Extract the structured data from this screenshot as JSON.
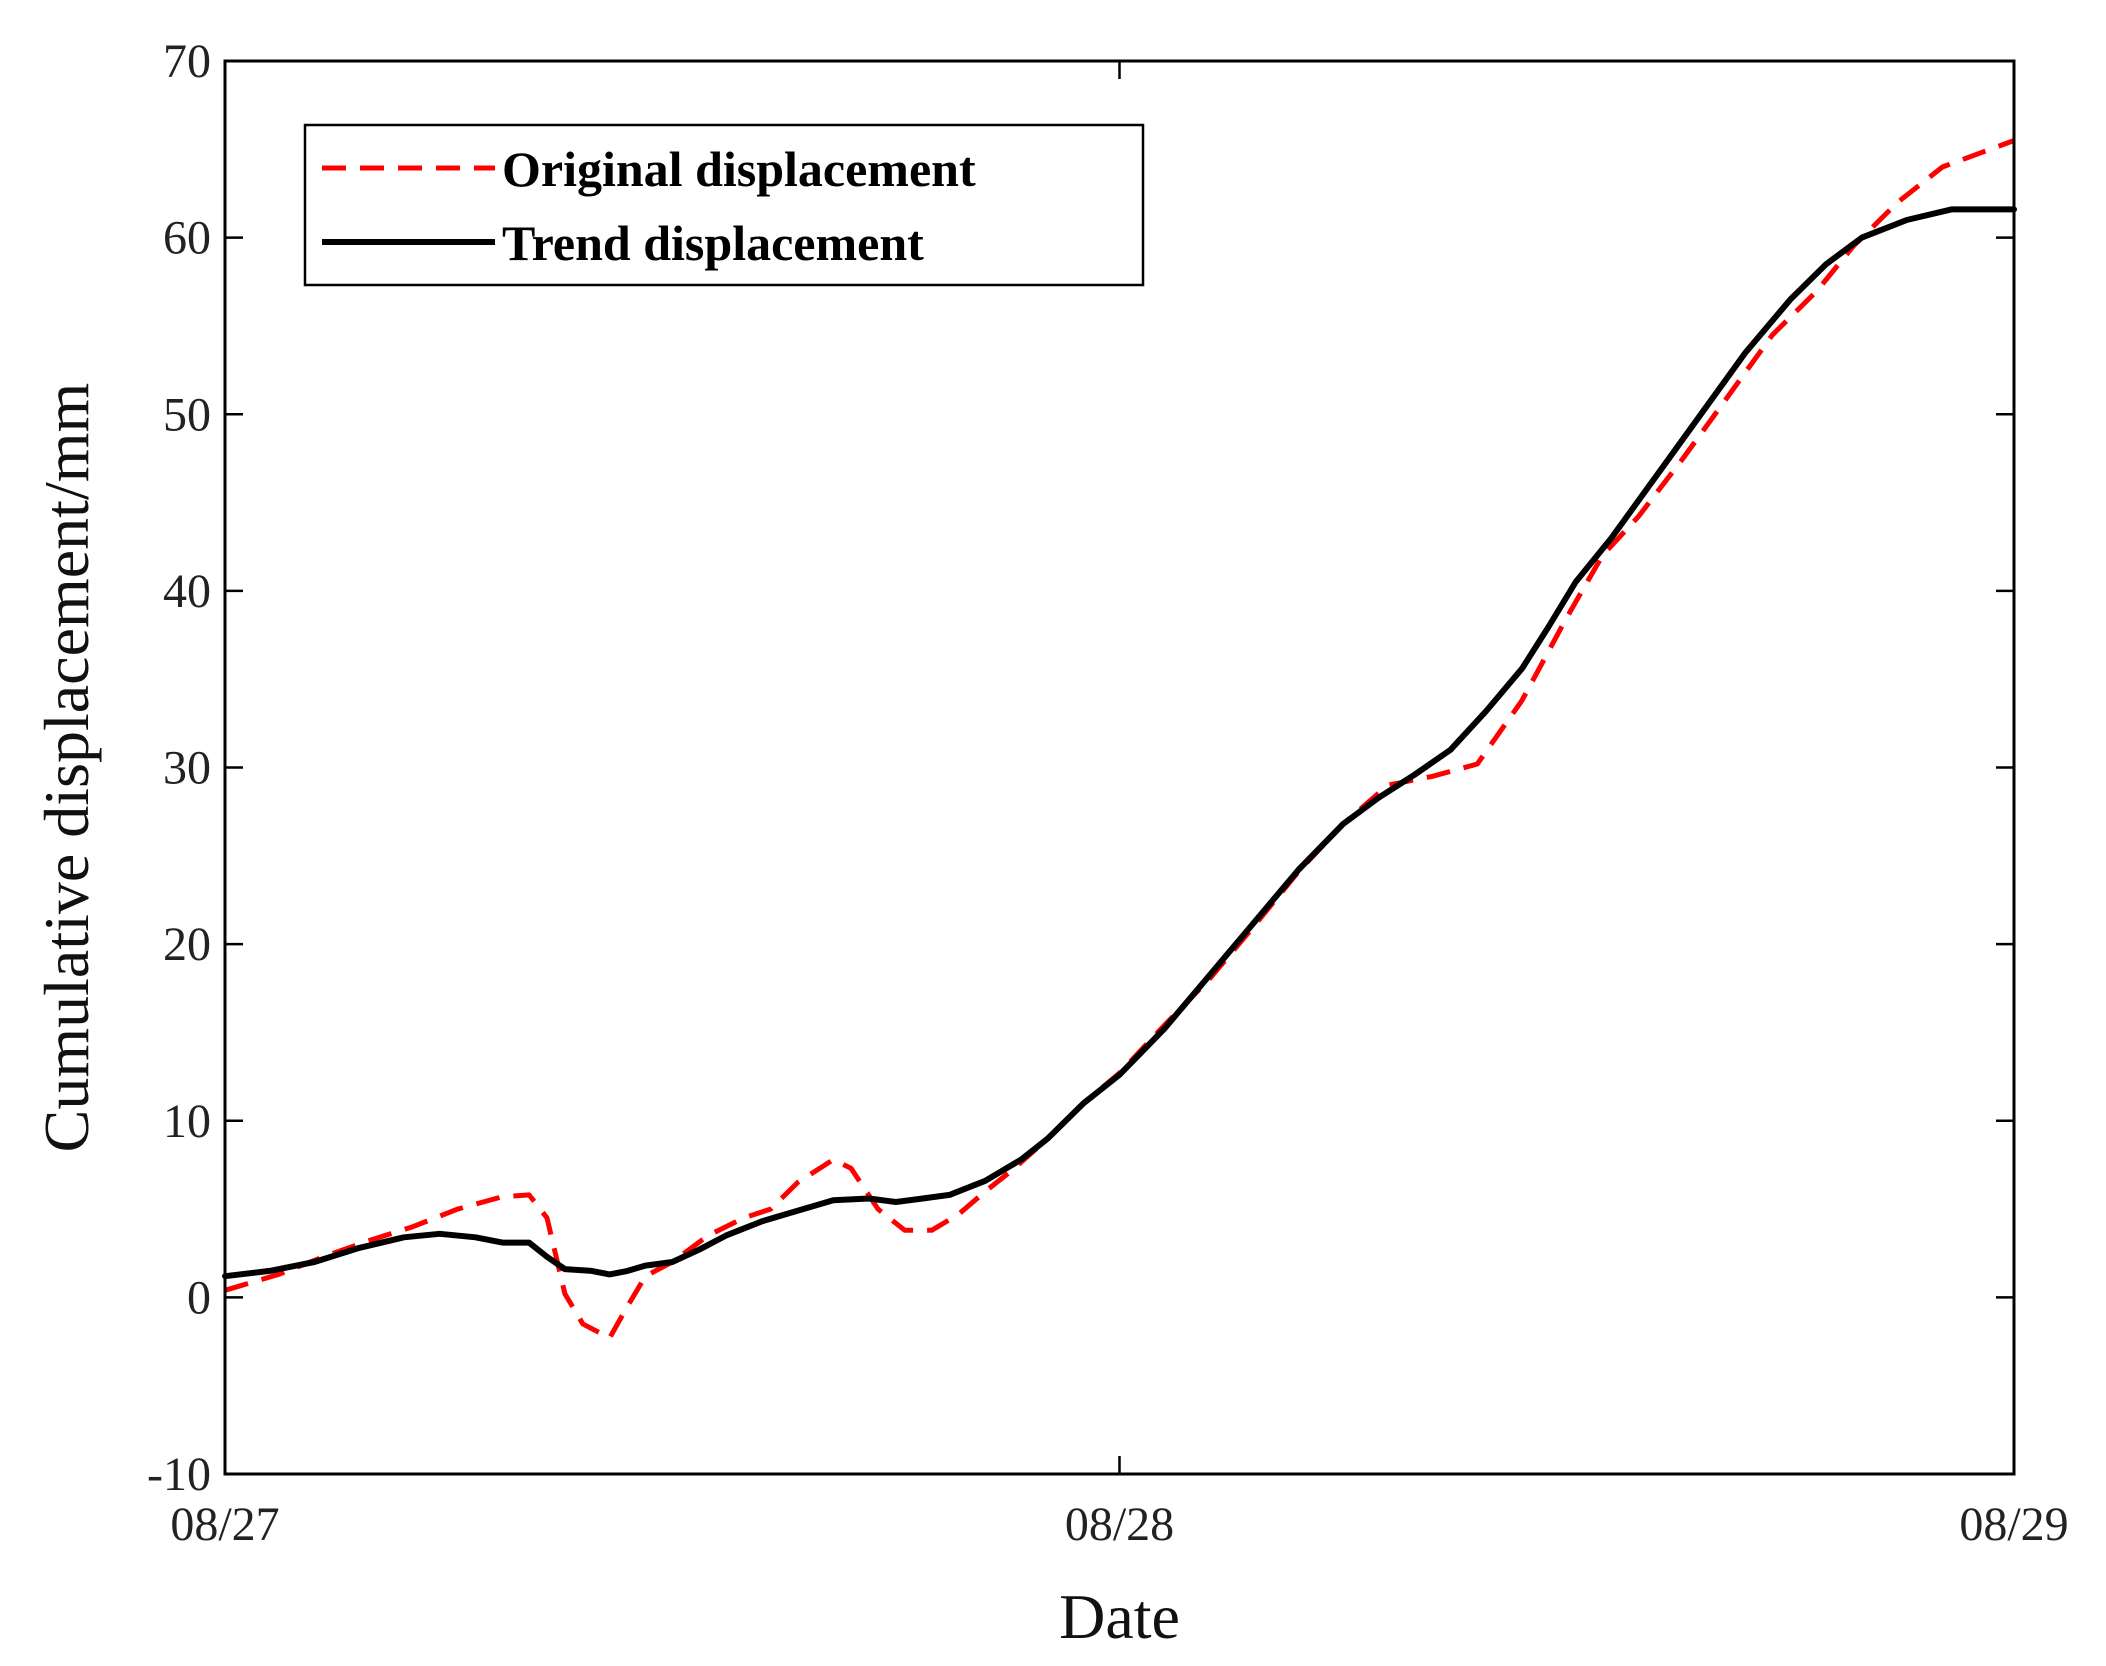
{
  "chart_data": {
    "type": "line",
    "xlabel": "Date",
    "ylabel": "Cumulative displacement/mm",
    "x_unit": "days",
    "xlim": [
      0,
      2
    ],
    "ylim": [
      -10,
      70
    ],
    "x_ticks": [
      {
        "value": 0,
        "label": "08/27"
      },
      {
        "value": 1,
        "label": "08/28"
      },
      {
        "value": 2,
        "label": "08/29"
      }
    ],
    "y_ticks": [
      {
        "value": -10,
        "label": "-10"
      },
      {
        "value": 0,
        "label": "0"
      },
      {
        "value": 10,
        "label": "10"
      },
      {
        "value": 20,
        "label": "20"
      },
      {
        "value": 30,
        "label": "30"
      },
      {
        "value": 40,
        "label": "40"
      },
      {
        "value": 50,
        "label": "50"
      },
      {
        "value": 60,
        "label": "60"
      },
      {
        "value": 70,
        "label": "70"
      }
    ],
    "grid": false,
    "legend_position": "top-left",
    "series": [
      {
        "name": "Original displacement",
        "style": "dashed",
        "color": "#ff0000",
        "points": [
          [
            0,
            0.4
          ],
          [
            0.06,
            1.3
          ],
          [
            0.11,
            2.3
          ],
          [
            0.16,
            3.2
          ],
          [
            0.21,
            4.0
          ],
          [
            0.26,
            5.0
          ],
          [
            0.31,
            5.7
          ],
          [
            0.34,
            5.8
          ],
          [
            0.36,
            4.5
          ],
          [
            0.38,
            0.2
          ],
          [
            0.4,
            -1.5
          ],
          [
            0.43,
            -2.3
          ],
          [
            0.45,
            -0.5
          ],
          [
            0.47,
            1.2
          ],
          [
            0.5,
            2.0
          ],
          [
            0.54,
            3.5
          ],
          [
            0.58,
            4.5
          ],
          [
            0.61,
            5.0
          ],
          [
            0.64,
            6.5
          ],
          [
            0.68,
            7.8
          ],
          [
            0.7,
            7.3
          ],
          [
            0.73,
            5.0
          ],
          [
            0.76,
            3.8
          ],
          [
            0.79,
            3.8
          ],
          [
            0.82,
            4.7
          ],
          [
            0.85,
            6.0
          ],
          [
            0.88,
            7.2
          ],
          [
            0.92,
            9.0
          ],
          [
            0.96,
            11.0
          ],
          [
            1.0,
            12.7
          ],
          [
            1.05,
            15.4
          ],
          [
            1.1,
            18.0
          ],
          [
            1.15,
            21.0
          ],
          [
            1.2,
            24.1
          ],
          [
            1.25,
            26.8
          ],
          [
            1.3,
            29.0
          ],
          [
            1.35,
            29.5
          ],
          [
            1.4,
            30.2
          ],
          [
            1.45,
            33.8
          ],
          [
            1.5,
            38.5
          ],
          [
            1.54,
            42.0
          ],
          [
            1.58,
            44.2
          ],
          [
            1.63,
            47.5
          ],
          [
            1.68,
            51.0
          ],
          [
            1.73,
            54.5
          ],
          [
            1.78,
            57.0
          ],
          [
            1.82,
            59.5
          ],
          [
            1.87,
            62.0
          ],
          [
            1.92,
            64.0
          ],
          [
            2.0,
            65.5
          ]
        ]
      },
      {
        "name": "Trend displacement",
        "style": "solid",
        "color": "#000000",
        "points": [
          [
            0,
            1.2
          ],
          [
            0.05,
            1.5
          ],
          [
            0.1,
            2.0
          ],
          [
            0.15,
            2.8
          ],
          [
            0.2,
            3.4
          ],
          [
            0.24,
            3.6
          ],
          [
            0.28,
            3.4
          ],
          [
            0.31,
            3.1
          ],
          [
            0.34,
            3.1
          ],
          [
            0.36,
            2.3
          ],
          [
            0.38,
            1.6
          ],
          [
            0.41,
            1.5
          ],
          [
            0.43,
            1.3
          ],
          [
            0.45,
            1.5
          ],
          [
            0.47,
            1.8
          ],
          [
            0.5,
            2.0
          ],
          [
            0.53,
            2.7
          ],
          [
            0.56,
            3.5
          ],
          [
            0.6,
            4.3
          ],
          [
            0.64,
            4.9
          ],
          [
            0.68,
            5.5
          ],
          [
            0.72,
            5.6
          ],
          [
            0.75,
            5.4
          ],
          [
            0.78,
            5.6
          ],
          [
            0.81,
            5.8
          ],
          [
            0.85,
            6.6
          ],
          [
            0.89,
            7.8
          ],
          [
            0.92,
            9.0
          ],
          [
            0.96,
            11.0
          ],
          [
            1.0,
            12.6
          ],
          [
            1.05,
            15.2
          ],
          [
            1.1,
            18.2
          ],
          [
            1.15,
            21.2
          ],
          [
            1.2,
            24.2
          ],
          [
            1.25,
            26.8
          ],
          [
            1.29,
            28.3
          ],
          [
            1.33,
            29.6
          ],
          [
            1.37,
            31.0
          ],
          [
            1.41,
            33.2
          ],
          [
            1.45,
            35.6
          ],
          [
            1.48,
            38.0
          ],
          [
            1.51,
            40.5
          ],
          [
            1.55,
            43.0
          ],
          [
            1.6,
            46.5
          ],
          [
            1.65,
            50.0
          ],
          [
            1.7,
            53.5
          ],
          [
            1.75,
            56.5
          ],
          [
            1.79,
            58.5
          ],
          [
            1.83,
            60.0
          ],
          [
            1.88,
            61.0
          ],
          [
            1.93,
            61.6
          ],
          [
            2.0,
            61.6
          ]
        ]
      }
    ]
  }
}
